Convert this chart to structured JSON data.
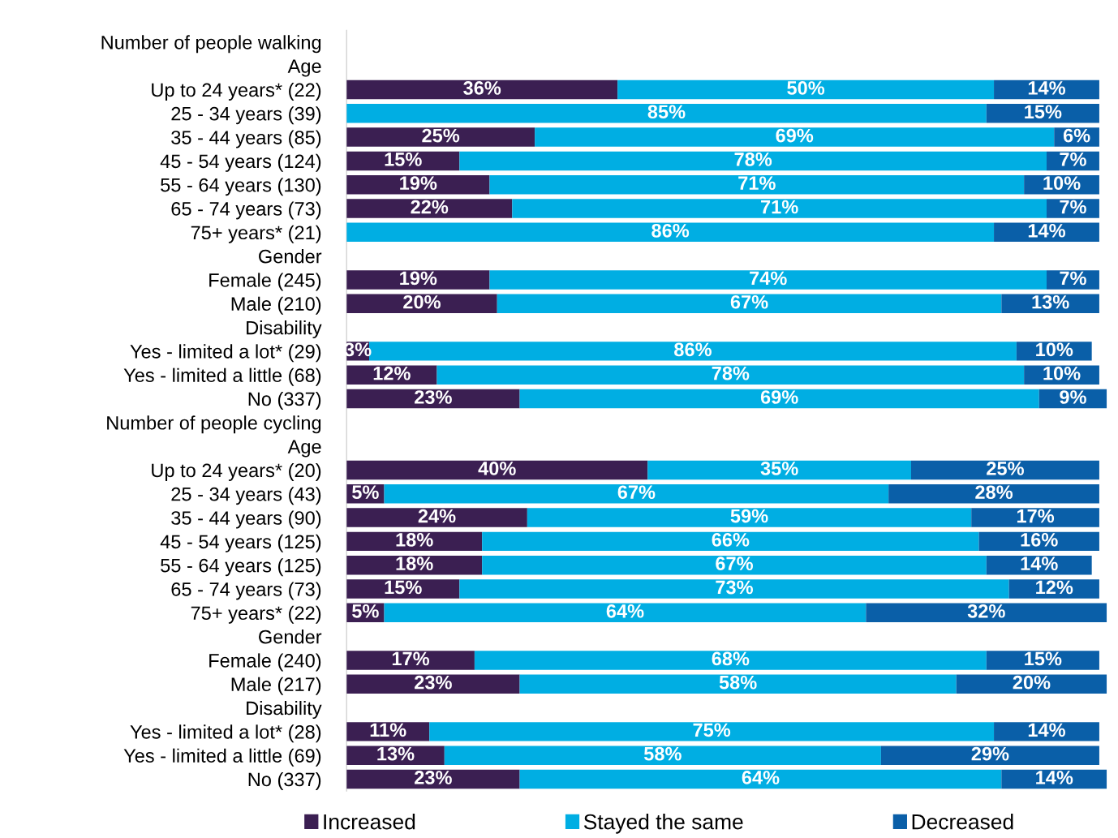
{
  "chart_data": {
    "type": "bar",
    "orientation": "horizontal",
    "stacked": true,
    "legend": "bottom",
    "grid": false,
    "categories": [
      "Number of people walking",
      "Age",
      "Up to 24 years* (22)",
      "25 - 34 years (39)",
      "35 - 44 years (85)",
      "45 - 54 years (124)",
      "55 - 64 years (130)",
      "65 - 74 years (73)",
      "75+ years* (21)",
      "Gender",
      "Female (245)",
      "Male (210)",
      "Disability",
      "Yes - limited a lot* (29)",
      "Yes - limited a little (68)",
      "No (337)",
      "Number of people cycling",
      "Age",
      "Up to 24 years* (20)",
      "25 - 34 years (43)",
      "35 - 44 years (90)",
      "45 - 54 years (125)",
      "55 - 64 years (125)",
      "65 - 74 years (73)",
      "75+ years* (22)",
      "Gender",
      "Female (240)",
      "Male (217)",
      "Disability",
      "Yes - limited a lot* (28)",
      "Yes - limited a little (69)",
      "No (337)"
    ],
    "series": [
      {
        "name": "Increased",
        "color": "#3b1f52",
        "values": [
          null,
          null,
          36,
          null,
          25,
          15,
          19,
          22,
          null,
          null,
          19,
          20,
          null,
          3,
          12,
          23,
          null,
          null,
          40,
          5,
          24,
          18,
          18,
          15,
          5,
          null,
          17,
          23,
          null,
          11,
          13,
          23
        ],
        "value_labels": [
          null,
          null,
          "36%",
          null,
          "25%",
          "15%",
          "19%",
          "22%",
          null,
          null,
          "19%",
          "20%",
          null,
          "3%",
          "12%",
          "23%",
          null,
          null,
          "40%",
          "5%",
          "24%",
          "18%",
          "18%",
          "15%",
          "5%",
          null,
          "17%",
          "23%",
          null,
          "11%",
          "13%",
          "23%"
        ]
      },
      {
        "name": "Stayed the same",
        "color": "#00aee3",
        "values": [
          null,
          null,
          50,
          85,
          69,
          78,
          71,
          71,
          86,
          null,
          74,
          67,
          null,
          86,
          78,
          69,
          null,
          null,
          35,
          67,
          59,
          66,
          67,
          73,
          64,
          null,
          68,
          58,
          null,
          75,
          58,
          64
        ],
        "value_labels": [
          null,
          null,
          "50%",
          "85%",
          "69%",
          "78%",
          "71%",
          "71%",
          "86%",
          null,
          "74%",
          "67%",
          null,
          "86%",
          "78%",
          "69%",
          null,
          null,
          "35%",
          "67%",
          "59%",
          "66%",
          "67%",
          "73%",
          "64%",
          null,
          "68%",
          "58%",
          null,
          "75%",
          "58%",
          "64%"
        ]
      },
      {
        "name": "Decreased",
        "color": "#0a5fa8",
        "values": [
          null,
          null,
          14,
          15,
          6,
          7,
          10,
          7,
          14,
          null,
          7,
          13,
          null,
          10,
          10,
          9,
          null,
          null,
          25,
          28,
          17,
          16,
          14,
          12,
          32,
          null,
          15,
          20,
          null,
          14,
          29,
          14
        ],
        "value_labels": [
          null,
          null,
          "14%",
          "15%",
          "6%",
          "7%",
          "10%",
          "7%",
          "14%",
          null,
          "7%",
          "13%",
          null,
          "10%",
          "10%",
          "9%",
          null,
          null,
          "25%",
          "28%",
          "17%",
          "16%",
          "14%",
          "12%",
          "32%",
          null,
          "15%",
          "20%",
          null,
          "14%",
          "29%",
          "14%"
        ]
      }
    ]
  }
}
